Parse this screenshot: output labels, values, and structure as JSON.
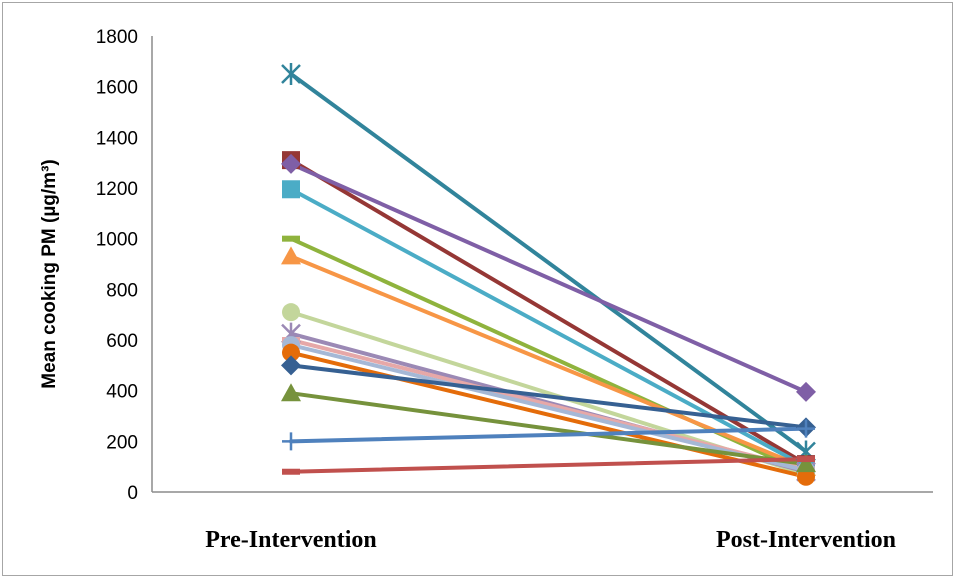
{
  "chart_data": {
    "type": "line",
    "categories": [
      "Pre-Intervention",
      "Post-Intervention"
    ],
    "ylabel": "Mean cooking PM (µg/m³)",
    "ylim": [
      0,
      1800
    ],
    "yticks": [
      0,
      200,
      400,
      600,
      800,
      1000,
      1200,
      1400,
      1600,
      1800
    ],
    "grid": false,
    "series": [
      {
        "values": [
          1650,
          160
        ],
        "color": "#31849b",
        "marker": "star"
      },
      {
        "values": [
          1310,
          110
        ],
        "color": "#953735",
        "marker": "square"
      },
      {
        "values": [
          1295,
          395
        ],
        "color": "#7f5fa6",
        "marker": "diamond"
      },
      {
        "values": [
          1195,
          100
        ],
        "color": "#4bacc6",
        "marker": "square"
      },
      {
        "values": [
          1000,
          75
        ],
        "color": "#8fb33d",
        "marker": "dash"
      },
      {
        "values": [
          930,
          95
        ],
        "color": "#f79646",
        "marker": "triangle"
      },
      {
        "values": [
          710,
          70
        ],
        "color": "#c3d69b",
        "marker": "circle"
      },
      {
        "values": [
          625,
          80
        ],
        "color": "#9b89b5",
        "marker": "star"
      },
      {
        "values": [
          600,
          90
        ],
        "color": "#e6a8a8",
        "marker": "dash"
      },
      {
        "values": [
          580,
          85
        ],
        "color": "#a5b8d6",
        "marker": "circle"
      },
      {
        "values": [
          550,
          60
        ],
        "color": "#e46c0a",
        "marker": "circle"
      },
      {
        "values": [
          500,
          255
        ],
        "color": "#366092",
        "marker": "diamond"
      },
      {
        "values": [
          390,
          110
        ],
        "color": "#76923c",
        "marker": "triangle"
      },
      {
        "values": [
          200,
          250
        ],
        "color": "#4f81bd",
        "marker": "plus"
      },
      {
        "values": [
          80,
          130
        ],
        "color": "#c0504d",
        "marker": "dash"
      }
    ]
  }
}
